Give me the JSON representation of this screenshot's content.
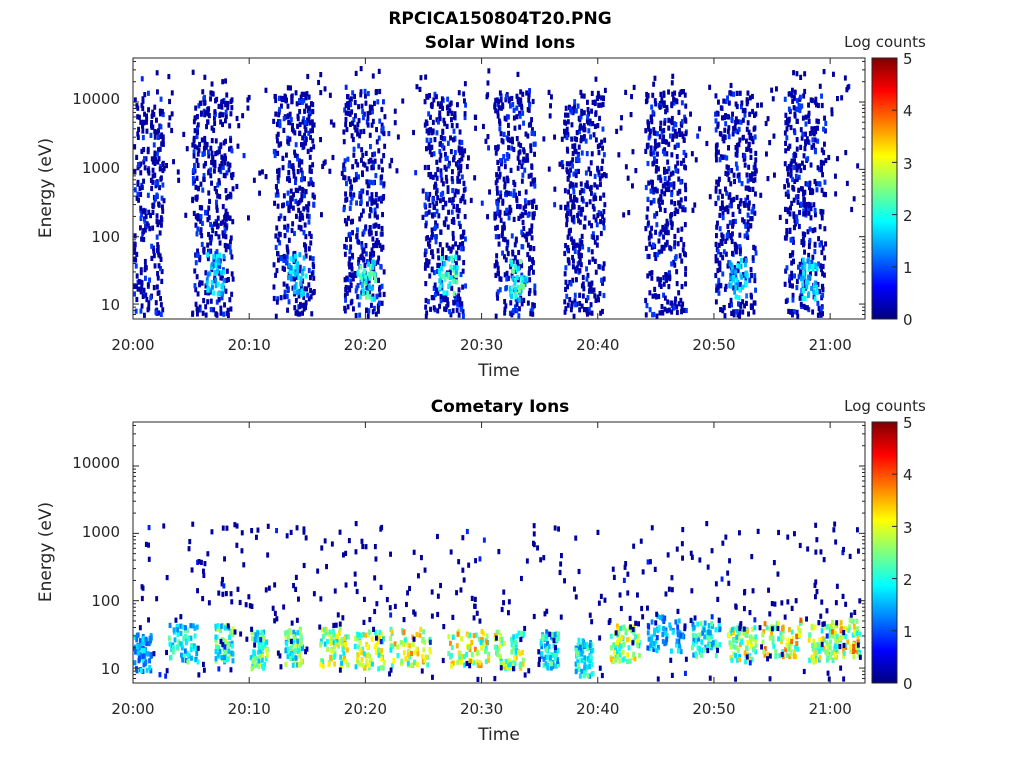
{
  "figure_title": "RPCICA150804T20.PNG",
  "colormap": [
    "#00007f",
    "#0000ff",
    "#007fff",
    "#00ffff",
    "#7fff7f",
    "#ffff00",
    "#ff7f00",
    "#ff0000",
    "#7f0000"
  ],
  "chart_data": [
    {
      "type": "heatmap",
      "title": "Solar Wind Ions",
      "xlabel": "Time",
      "ylabel": "Energy (eV)",
      "yscale": "log",
      "ylim": [
        6,
        45000
      ],
      "xlim": [
        "20:00",
        "21:03"
      ],
      "xticks": [
        "20:00",
        "20:10",
        "20:20",
        "20:30",
        "20:40",
        "20:50",
        "21:00"
      ],
      "yticks": [
        10,
        100,
        1000,
        10000
      ],
      "ytick_labels": [
        "10",
        "100",
        "1000",
        "10000"
      ],
      "colorbar": {
        "label": "Log counts",
        "range": [
          0,
          5
        ],
        "ticks": [
          "0",
          "1",
          "2",
          "3",
          "4",
          "5"
        ]
      },
      "bursts": [
        {
          "start": "20:00",
          "end": "20:02",
          "peak_energy_eV": null,
          "peak_log_counts": 1
        },
        {
          "start": "20:05",
          "end": "20:08",
          "peak_energy_eV": 30,
          "peak_log_counts": 2
        },
        {
          "start": "20:12",
          "end": "20:15",
          "peak_energy_eV": 30,
          "peak_log_counts": 2
        },
        {
          "start": "20:18",
          "end": "20:21",
          "peak_energy_eV": 25,
          "peak_log_counts": 2.5
        },
        {
          "start": "20:25",
          "end": "20:28",
          "peak_energy_eV": 30,
          "peak_log_counts": 2.5
        },
        {
          "start": "20:31",
          "end": "20:34",
          "peak_energy_eV": 25,
          "peak_log_counts": 2.5
        },
        {
          "start": "20:37",
          "end": "20:40",
          "peak_energy_eV": null,
          "peak_log_counts": 1
        },
        {
          "start": "20:44",
          "end": "20:47",
          "peak_energy_eV": null,
          "peak_log_counts": 1
        },
        {
          "start": "20:50",
          "end": "20:53",
          "peak_energy_eV": 25,
          "peak_log_counts": 2
        },
        {
          "start": "20:56",
          "end": "20:59",
          "peak_energy_eV": 25,
          "peak_log_counts": 2
        }
      ]
    },
    {
      "type": "heatmap",
      "title": "Cometary Ions",
      "xlabel": "Time",
      "ylabel": "Energy (eV)",
      "yscale": "log",
      "ylim": [
        6,
        45000
      ],
      "xlim": [
        "20:00",
        "21:03"
      ],
      "xticks": [
        "20:00",
        "20:10",
        "20:20",
        "20:30",
        "20:40",
        "20:50",
        "21:00"
      ],
      "yticks": [
        10,
        100,
        1000,
        10000
      ],
      "ytick_labels": [
        "10",
        "100",
        "1000",
        "10000"
      ],
      "colorbar": {
        "label": "Log counts",
        "range": [
          0,
          5
        ],
        "ticks": [
          "0",
          "1",
          "2",
          "3",
          "4",
          "5"
        ]
      },
      "bursts": [
        {
          "start": "20:00",
          "end": "20:01",
          "peak_energy_eV": 18,
          "peak_log_counts": 2
        },
        {
          "start": "20:03",
          "end": "20:05",
          "peak_energy_eV": 25,
          "peak_log_counts": 2.5
        },
        {
          "start": "20:07",
          "end": "20:08",
          "peak_energy_eV": 25,
          "peak_log_counts": 3
        },
        {
          "start": "20:10",
          "end": "20:11",
          "peak_energy_eV": 20,
          "peak_log_counts": 3
        },
        {
          "start": "20:13",
          "end": "20:14",
          "peak_energy_eV": 22,
          "peak_log_counts": 3
        },
        {
          "start": "20:16",
          "end": "20:18",
          "peak_energy_eV": 22,
          "peak_log_counts": 3.5
        },
        {
          "start": "20:19",
          "end": "20:21",
          "peak_energy_eV": 20,
          "peak_log_counts": 3.5
        },
        {
          "start": "20:22",
          "end": "20:25",
          "peak_energy_eV": 22,
          "peak_log_counts": 3.8
        },
        {
          "start": "20:27",
          "end": "20:30",
          "peak_energy_eV": 22,
          "peak_log_counts": 3.8
        },
        {
          "start": "20:31",
          "end": "20:33",
          "peak_energy_eV": 20,
          "peak_log_counts": 3.5
        },
        {
          "start": "20:35",
          "end": "20:36",
          "peak_energy_eV": 20,
          "peak_log_counts": 2.5
        },
        {
          "start": "20:38",
          "end": "20:39",
          "peak_energy_eV": 15,
          "peak_log_counts": 2.5
        },
        {
          "start": "20:41",
          "end": "20:43",
          "peak_energy_eV": 25,
          "peak_log_counts": 3.5
        },
        {
          "start": "20:44",
          "end": "20:47",
          "peak_energy_eV": 35,
          "peak_log_counts": 2
        },
        {
          "start": "20:48",
          "end": "20:50",
          "peak_energy_eV": 30,
          "peak_log_counts": 2.5
        },
        {
          "start": "20:51",
          "end": "20:53",
          "peak_energy_eV": 25,
          "peak_log_counts": 3.5
        },
        {
          "start": "20:54",
          "end": "20:57",
          "peak_energy_eV": 30,
          "peak_log_counts": 4
        },
        {
          "start": "20:58",
          "end": "21:00",
          "peak_energy_eV": 25,
          "peak_log_counts": 3.5
        },
        {
          "start": "21:00",
          "end": "21:02",
          "peak_energy_eV": 30,
          "peak_log_counts": 4
        }
      ]
    }
  ]
}
